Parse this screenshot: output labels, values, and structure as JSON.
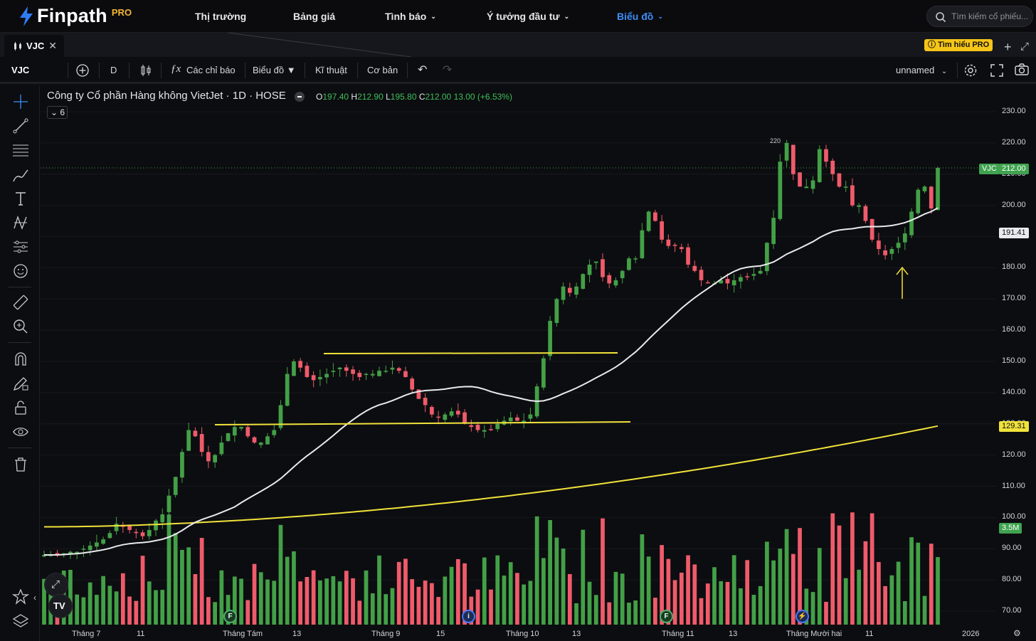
{
  "brand": {
    "name": "Finpath",
    "tier": "PRO"
  },
  "nav": {
    "items": [
      {
        "label": "Thị trường",
        "has_menu": false
      },
      {
        "label": "Bảng giá",
        "has_menu": false
      },
      {
        "label": "Tình báo",
        "has_menu": true
      },
      {
        "label": "Ý tưởng đầu tư",
        "has_menu": true
      },
      {
        "label": "Biểu đồ",
        "has_menu": true,
        "active": true
      }
    ],
    "search_placeholder": "Tìm kiếm cổ phiếu..."
  },
  "tabs": [
    {
      "label": "VJC"
    }
  ],
  "pro_badge": "Tìm hiểu PRO",
  "toolbar": {
    "symbol": "VJC",
    "interval": "D",
    "indicators_label": "Các chỉ báo",
    "chart_menu_label": "Biểu đồ",
    "technical_label": "Kĩ thuật",
    "fundamental_label": "Cơ bản",
    "layout_name": "unnamed"
  },
  "legend": {
    "title": "Công ty Cổ phần Hàng không VietJet · 1D · HOSE",
    "open_key": "O",
    "open": "197.40",
    "high_key": "H",
    "high": "212.90",
    "low_key": "L",
    "low": "195.80",
    "close_key": "C",
    "close": "212.00",
    "change": "13.00 (+6.53%)",
    "collapsed_count": "6"
  },
  "price_tags": {
    "symbol_tag": "VJC",
    "last_price": "212.00",
    "ma_fast": "191.41",
    "ma_slow": "129.31",
    "volume": "3.5M",
    "max_marker": "220"
  },
  "colors": {
    "up": "#43a047",
    "down": "#ef5b6b",
    "ma_fast": "#e9eaee",
    "ma_slow": "#f1e23b",
    "accent": "#3d8ef7",
    "pro": "#f5c518"
  },
  "chart_data": {
    "type": "candlestick",
    "y_axis": {
      "min": 70,
      "max": 230,
      "ticks": [
        "230.00",
        "220.00",
        "210.00",
        "200.00",
        "190.00",
        "180.00",
        "170.00",
        "160.00",
        "150.00",
        "140.00",
        "130.00",
        "120.00",
        "110.00",
        "100.00",
        "90.00",
        "80.00",
        "70.00"
      ]
    },
    "x_axis": {
      "labels": [
        "Tháng 7",
        "11",
        "Tháng Tám",
        "13",
        "Tháng 9",
        "15",
        "Tháng 10",
        "13",
        "Tháng 11",
        "13",
        "Tháng Mười hai",
        "11",
        "2026"
      ]
    },
    "events": [
      "F",
      "i",
      "F",
      "⚡"
    ],
    "closes": [
      88,
      88,
      88,
      88.5,
      89,
      89,
      90,
      91,
      92,
      93,
      95,
      98,
      97,
      96,
      95,
      94,
      96,
      99,
      101,
      107,
      113,
      121,
      128,
      126,
      121,
      118,
      120,
      124,
      127,
      129,
      129,
      126,
      124,
      124,
      126,
      128,
      136,
      146,
      150,
      148,
      145,
      144,
      145,
      146,
      147,
      148,
      147,
      146,
      145,
      146,
      146,
      147,
      147,
      148,
      147,
      145,
      141,
      138,
      136,
      133,
      132,
      133,
      134,
      133,
      130,
      129,
      128,
      128,
      128,
      130,
      131,
      132,
      131,
      131,
      133,
      142,
      151,
      163,
      170,
      174,
      172,
      174,
      178,
      181,
      182,
      177,
      175,
      176,
      179,
      183,
      183,
      192,
      198,
      195,
      189,
      187,
      187,
      186,
      181,
      179,
      176,
      175,
      175,
      176,
      175,
      176,
      177,
      177,
      178,
      179,
      188,
      196,
      214,
      220,
      210,
      206,
      206,
      208,
      218,
      214,
      210,
      206,
      206,
      200,
      200,
      195,
      189,
      186,
      184,
      186,
      188,
      191,
      198,
      205,
      206,
      199,
      212
    ]
  }
}
